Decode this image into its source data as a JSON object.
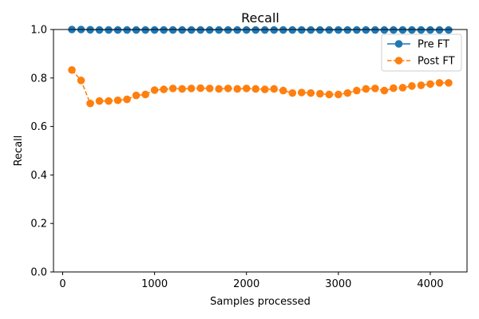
{
  "chart_data": {
    "type": "line",
    "title": "Recall",
    "xlabel": "Samples processed",
    "ylabel": "Recall",
    "xlim": [
      -100,
      4400
    ],
    "ylim": [
      0.0,
      1.0
    ],
    "xticks": [
      0,
      1000,
      2000,
      3000,
      4000
    ],
    "yticks": [
      0.0,
      0.2,
      0.4,
      0.6,
      0.8,
      1.0
    ],
    "xtick_labels": [
      "0",
      "1000",
      "2000",
      "3000",
      "4000"
    ],
    "ytick_labels": [
      "0.0",
      "0.2",
      "0.4",
      "0.6",
      "0.8",
      "1.0"
    ],
    "grid": false,
    "legend_position": "top-right",
    "x": [
      100,
      200,
      300,
      400,
      500,
      600,
      700,
      800,
      900,
      1000,
      1100,
      1200,
      1300,
      1400,
      1500,
      1600,
      1700,
      1800,
      1900,
      2000,
      2100,
      2200,
      2300,
      2400,
      2500,
      2600,
      2700,
      2800,
      2900,
      3000,
      3100,
      3200,
      3300,
      3400,
      3500,
      3600,
      3700,
      3800,
      3900,
      4000,
      4100,
      4200
    ],
    "series": [
      {
        "name": "Pre FT",
        "color": "#1f77b4",
        "linestyle": "solid",
        "values": [
          1.0,
          1.0,
          0.999,
          0.998,
          0.998,
          0.998,
          0.998,
          0.998,
          0.998,
          0.998,
          0.998,
          0.998,
          0.998,
          0.998,
          0.998,
          0.998,
          0.998,
          0.998,
          0.998,
          0.998,
          0.998,
          0.998,
          0.998,
          0.998,
          0.998,
          0.998,
          0.998,
          0.998,
          0.998,
          0.998,
          0.998,
          0.998,
          0.998,
          0.998,
          0.998,
          0.998,
          0.998,
          0.998,
          0.998,
          0.998,
          0.998,
          0.998
        ]
      },
      {
        "name": "Post FT",
        "color": "#ff7f0e",
        "linestyle": "dashed",
        "values": [
          0.833,
          0.79,
          0.695,
          0.705,
          0.705,
          0.708,
          0.712,
          0.728,
          0.732,
          0.75,
          0.753,
          0.757,
          0.755,
          0.757,
          0.758,
          0.757,
          0.755,
          0.757,
          0.755,
          0.757,
          0.755,
          0.753,
          0.755,
          0.748,
          0.738,
          0.74,
          0.738,
          0.735,
          0.732,
          0.732,
          0.738,
          0.748,
          0.755,
          0.757,
          0.748,
          0.758,
          0.76,
          0.767,
          0.77,
          0.775,
          0.78,
          0.78
        ]
      }
    ]
  }
}
